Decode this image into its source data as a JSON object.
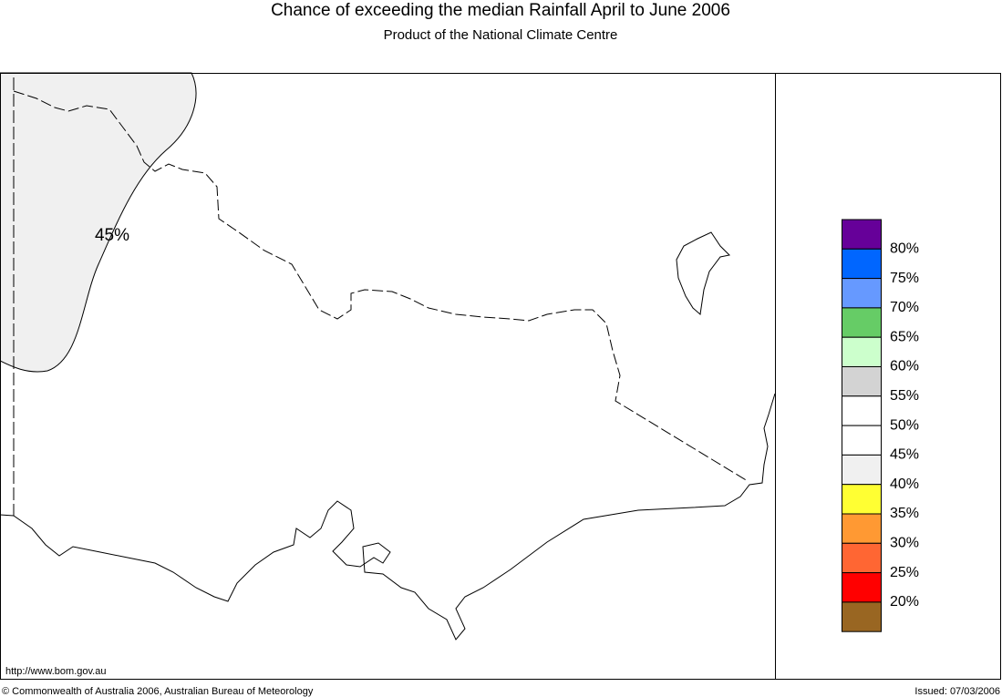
{
  "header": {
    "title": "Chance of exceeding the median Rainfall April to June 2006",
    "subtitle": "Product of the National Climate Centre"
  },
  "map": {
    "annotations": [
      "45%"
    ]
  },
  "legend": {
    "swatch_colors": [
      "#660099",
      "#0066ff",
      "#6699ff",
      "#66cc66",
      "#ccffcc",
      "#d3d3d3",
      "#ffffff",
      "#ffffff",
      "#f0f0f0",
      "#ffff33",
      "#ff9933",
      "#ff6633",
      "#ff0000",
      "#996622"
    ],
    "labels": [
      "80%",
      "75%",
      "70%",
      "65%",
      "60%",
      "55%",
      "50%",
      "45%",
      "40%",
      "35%",
      "30%",
      "25%",
      "20%"
    ]
  },
  "footer": {
    "url": "http://www.bom.gov.au",
    "copyright": "© Commonwealth of Australia 2006, Australian Bureau of Meteorology",
    "issued": "Issued: 07/03/2006"
  }
}
